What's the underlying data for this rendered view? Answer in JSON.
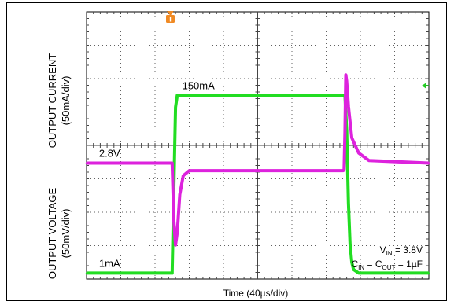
{
  "chart_data": {
    "type": "line",
    "x_axis": {
      "label": "Time (40µs/div)",
      "divisions": 10,
      "units_per_div": 40,
      "range": [
        0,
        400
      ]
    },
    "panels": [
      {
        "id": "current",
        "ylabel_line1": "OUTPUT CURRENT",
        "ylabel_line2": "(50mA/div)",
        "color": "#22dd22",
        "level_labels": [
          {
            "text": "150mA",
            "x": 110,
            "y": 150
          },
          {
            "text": "1mA",
            "x": 10,
            "y": 1
          }
        ],
        "series": {
          "name": "",
          "unit": "mA",
          "x": [
            0,
            98,
            100,
            102,
            104,
            106,
            300,
            302,
            304,
            306,
            308,
            310,
            312,
            318,
            400
          ],
          "y": [
            1,
            1,
            1,
            70,
            140,
            150,
            150,
            150,
            120,
            60,
            25,
            10,
            4,
            1,
            1
          ]
        },
        "ylim": [
          -4,
          220
        ]
      },
      {
        "id": "voltage",
        "ylabel_line1": "OUTPUT VOLTAGE",
        "ylabel_line2": "(50mV/div)",
        "color": "#dd22dd",
        "level_labels": [
          {
            "text": "2.8V",
            "x": 10,
            "y": 2800
          }
        ],
        "series": {
          "name": "",
          "unit": "mV",
          "x": [
            0,
            98,
            100,
            102,
            104,
            106,
            109,
            113,
            120,
            300,
            301,
            302,
            303,
            304,
            306,
            310,
            318,
            330,
            400
          ],
          "y": [
            2800,
            2800,
            2800,
            2755,
            2735,
            2745,
            2775,
            2790,
            2794,
            2794,
            2795,
            2825,
            2870,
            2865,
            2845,
            2820,
            2808,
            2802,
            2800
          ]
        },
        "ylim": [
          2708,
          2920
        ]
      }
    ],
    "annotations": {
      "vin": {
        "main": "V",
        "sub": "IN",
        "rest": " = 3.8V"
      },
      "cap": {
        "main1": "C",
        "sub1": "IN",
        "mid": " = C",
        "sub2": "OUT",
        "rest": " = 1µF"
      }
    },
    "trigger_marker": "T",
    "grid": true
  },
  "colors": {
    "current": "#22dd22",
    "voltage": "#dd22dd",
    "trigger": "#f08a24",
    "grid": "#606060"
  },
  "icons": {
    "trigger": "trigger-marker-icon",
    "level": "level-arrow-icon"
  }
}
